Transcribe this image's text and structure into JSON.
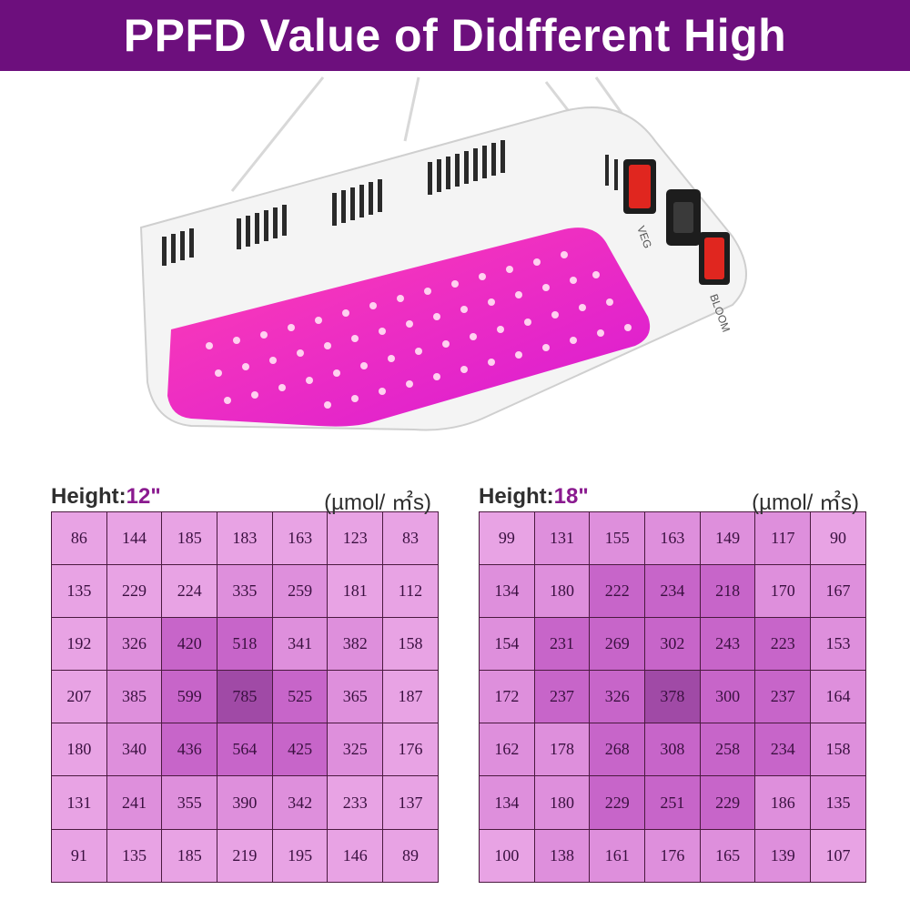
{
  "title": "PPFD Value of Didfferent High",
  "lamp": {
    "switch_labels": [
      "VEG",
      "BLOOM"
    ]
  },
  "left": {
    "height_label": "Height:",
    "height_value": "12\"",
    "unit": "(µmol/ ㎡s)",
    "rows": [
      [
        86,
        144,
        185,
        183,
        163,
        123,
        83
      ],
      [
        135,
        229,
        224,
        335,
        259,
        181,
        112
      ],
      [
        192,
        326,
        420,
        518,
        341,
        382,
        158
      ],
      [
        207,
        385,
        599,
        785,
        525,
        365,
        187
      ],
      [
        180,
        340,
        436,
        564,
        425,
        325,
        176
      ],
      [
        131,
        241,
        355,
        390,
        342,
        233,
        137
      ],
      [
        91,
        135,
        185,
        219,
        195,
        146,
        89
      ]
    ]
  },
  "right": {
    "height_label": "Height:",
    "height_value": "18\"",
    "unit": "(µmol/ ㎡s)",
    "rows": [
      [
        99,
        131,
        155,
        163,
        149,
        117,
        90
      ],
      [
        134,
        180,
        222,
        234,
        218,
        170,
        167
      ],
      [
        154,
        231,
        269,
        302,
        243,
        223,
        153
      ],
      [
        172,
        237,
        326,
        378,
        300,
        237,
        164
      ],
      [
        162,
        178,
        268,
        308,
        258,
        234,
        158
      ],
      [
        134,
        180,
        229,
        251,
        229,
        186,
        135
      ],
      [
        100,
        138,
        161,
        176,
        165,
        139,
        107
      ]
    ]
  },
  "colors": {
    "banner": "#6d0f7d",
    "cell_light": "#e8a3e4",
    "cell_mid": "#de8fdc",
    "cell_dark": "#c765c9",
    "cell_center": "#a04aa6"
  }
}
